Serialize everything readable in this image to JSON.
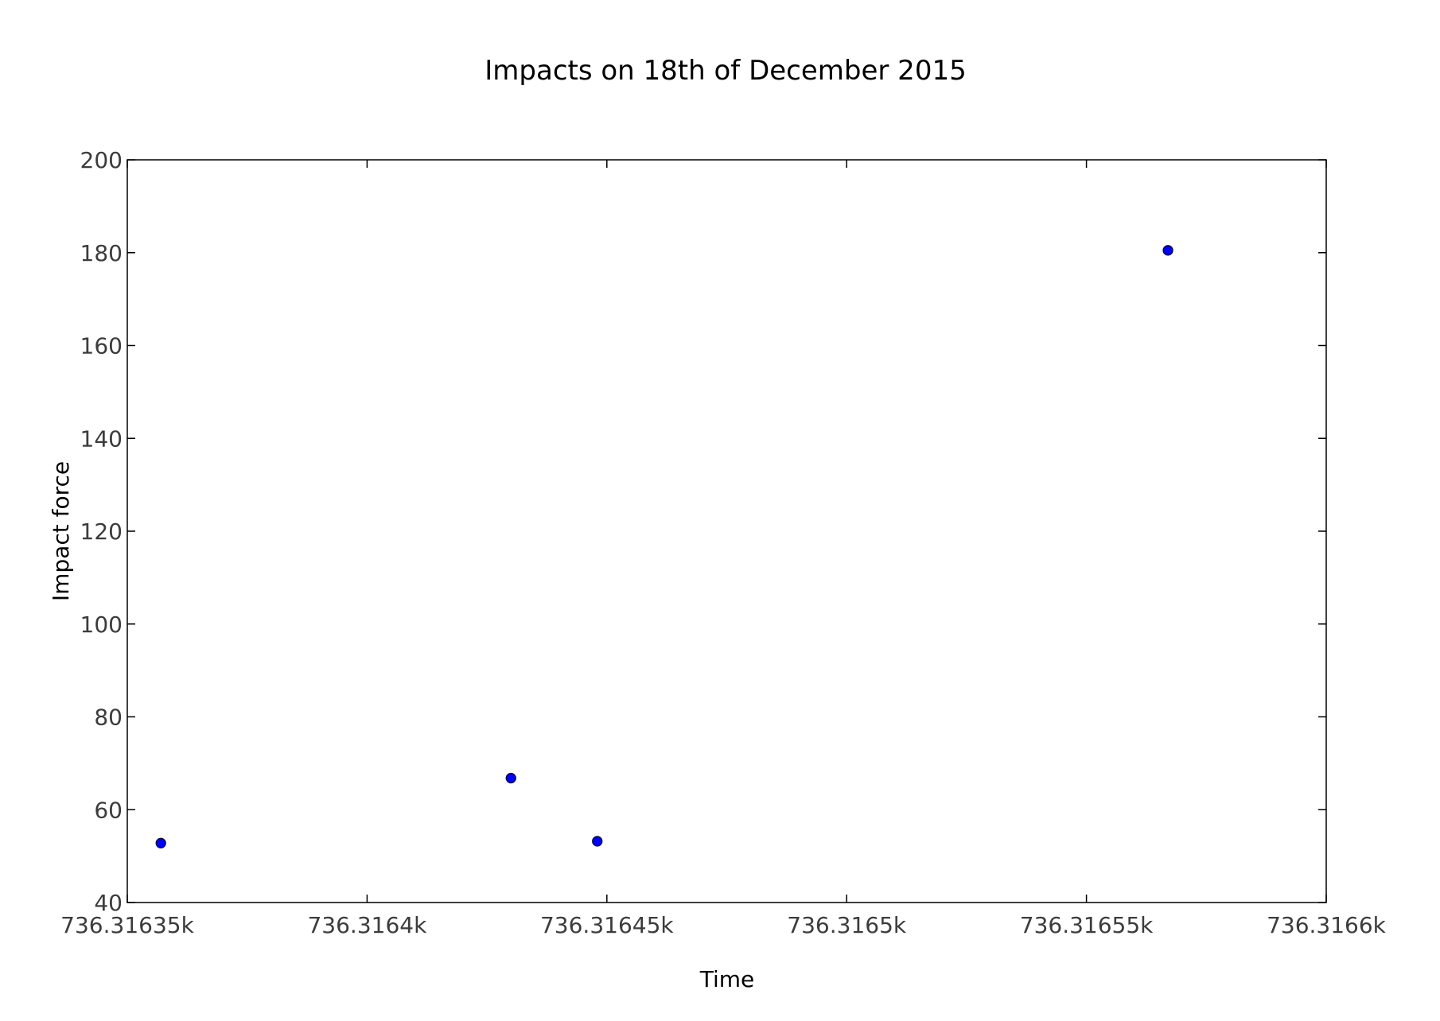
{
  "chart_data": {
    "type": "scatter",
    "title": "Impacts on 18th of December 2015",
    "xlabel": "Time",
    "ylabel": "Impact force",
    "xlim": [
      736.31635,
      736.3166
    ],
    "ylim": [
      40,
      200
    ],
    "x_ticks": [
      "736.31635k",
      "736.3164k",
      "736.31645k",
      "736.3165k",
      "736.31655k",
      "736.3166k"
    ],
    "y_ticks": [
      "40",
      "60",
      "80",
      "100",
      "120",
      "140",
      "160",
      "180",
      "200"
    ],
    "grid": false,
    "series": [
      {
        "color": "#0000ff",
        "points": [
          {
            "x": 736.316357,
            "y": 52.8
          },
          {
            "x": 736.31643,
            "y": 66.8
          },
          {
            "x": 736.316448,
            "y": 53.2
          },
          {
            "x": 736.316567,
            "y": 180.5
          }
        ]
      }
    ]
  }
}
